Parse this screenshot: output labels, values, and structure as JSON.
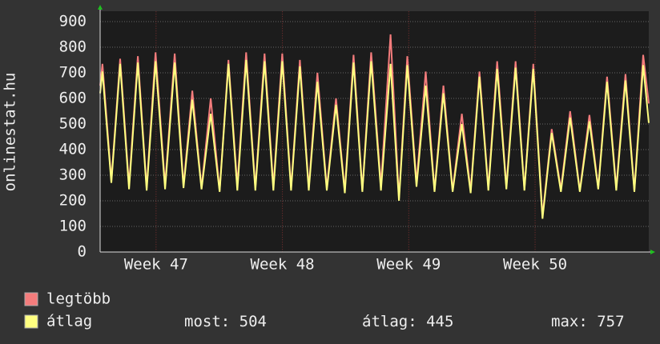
{
  "chart_data": {
    "type": "line",
    "y_label": "onlinestat.hu",
    "xlim": [
      0,
      30.4
    ],
    "xticks": [
      {
        "value": 3.1,
        "label": "Week 47"
      },
      {
        "value": 10.1,
        "label": "Week 48"
      },
      {
        "value": 17.1,
        "label": "Week 49"
      },
      {
        "value": 24.1,
        "label": "Week 50"
      }
    ],
    "ylim": [
      0,
      940
    ],
    "yticks": [
      0,
      100,
      200,
      300,
      400,
      500,
      600,
      700,
      800,
      900
    ],
    "grid": true,
    "x": [
      0,
      0.13,
      0.62,
      1.11,
      1.6,
      2.09,
      2.58,
      3.07,
      3.6,
      4.13,
      4.62,
      5.11,
      5.62,
      6.13,
      6.62,
      7.11,
      7.6,
      8.09,
      8.6,
      9.11,
      9.6,
      10.09,
      10.58,
      11.07,
      11.56,
      12.04,
      12.56,
      13.07,
      13.56,
      14.04,
      14.53,
      15.02,
      15.56,
      16.09,
      16.56,
      17.02,
      17.53,
      18.04,
      18.53,
      19.02,
      19.53,
      20.04,
      20.53,
      21.02,
      21.51,
      22,
      22.51,
      23.02,
      23.51,
      24,
      24.51,
      25.02,
      25.53,
      26.04,
      26.58,
      27.11,
      27.6,
      28.09,
      28.6,
      29.11,
      29.6,
      30.09,
      30.4
    ],
    "series": [
      {
        "name": "legtöbb",
        "color": "#f47c7c",
        "values": [
          650,
          735,
          280,
          755,
          260,
          765,
          250,
          780,
          260,
          775,
          260,
          630,
          250,
          600,
          240,
          750,
          260,
          780,
          250,
          775,
          255,
          775,
          250,
          750,
          250,
          700,
          250,
          600,
          240,
          770,
          240,
          780,
          260,
          850,
          210,
          765,
          270,
          705,
          240,
          650,
          240,
          540,
          240,
          705,
          250,
          745,
          255,
          745,
          245,
          735,
          140,
          480,
          245,
          550,
          240,
          535,
          250,
          685,
          250,
          695,
          240,
          770,
          580
        ]
      },
      {
        "name": "átlag",
        "color": "#ffff80",
        "values": [
          620,
          705,
          270,
          735,
          245,
          740,
          240,
          745,
          245,
          740,
          250,
          595,
          245,
          540,
          235,
          735,
          240,
          750,
          240,
          745,
          240,
          745,
          240,
          725,
          240,
          665,
          240,
          575,
          230,
          740,
          235,
          745,
          240,
          735,
          200,
          730,
          255,
          650,
          235,
          620,
          235,
          500,
          230,
          685,
          240,
          715,
          245,
          720,
          240,
          715,
          130,
          465,
          235,
          525,
          235,
          510,
          245,
          665,
          240,
          670,
          235,
          730,
          504
        ]
      }
    ],
    "stats": [
      {
        "label": "most:",
        "value": 504
      },
      {
        "label": "átlag:",
        "value": 445
      },
      {
        "label": "max:",
        "value": 757
      }
    ]
  }
}
